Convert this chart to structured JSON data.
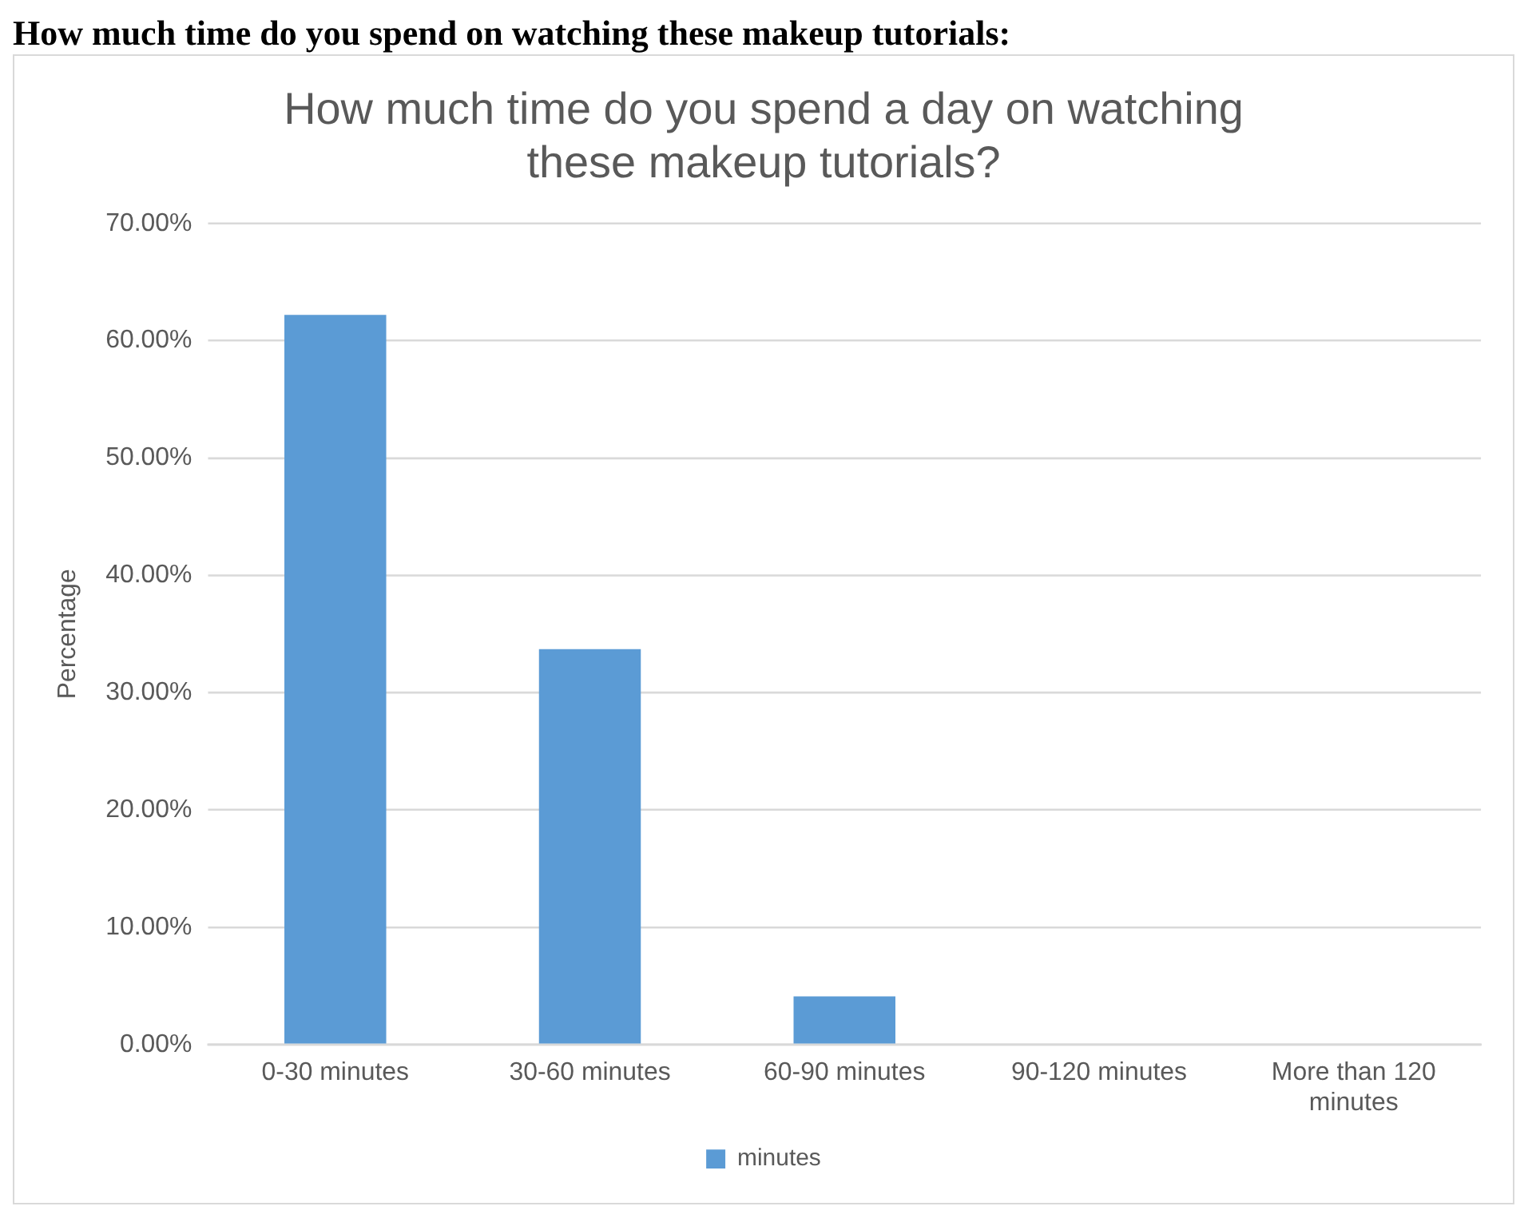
{
  "chart_data": {
    "type": "bar",
    "title": "How much time do you spend a day on watching these makeup tutorials?",
    "annotations": [
      "How much time do you spend on watching these makeup tutorials:"
    ],
    "ylabel": "Percentage",
    "categories": [
      "0-30 minutes",
      "30-60 minutes",
      "60-90 minutes",
      "90-120 minutes",
      "More than 120 minutes"
    ],
    "series": [
      {
        "name": "minutes",
        "color": "#5b9bd5",
        "values": [
          62.2,
          33.7,
          4.1,
          0,
          0
        ]
      }
    ],
    "ylim": [
      0,
      70
    ],
    "yticks": [
      {
        "value": 0,
        "label": "0.00%"
      },
      {
        "value": 10,
        "label": "10.00%"
      },
      {
        "value": 20,
        "label": "20.00%"
      },
      {
        "value": 30,
        "label": "30.00%"
      },
      {
        "value": 40,
        "label": "40.00%"
      },
      {
        "value": 50,
        "label": "50.00%"
      },
      {
        "value": 60,
        "label": "60.00%"
      },
      {
        "value": 70,
        "label": "70.00%"
      }
    ],
    "grid": "y",
    "legend": "bottom"
  }
}
